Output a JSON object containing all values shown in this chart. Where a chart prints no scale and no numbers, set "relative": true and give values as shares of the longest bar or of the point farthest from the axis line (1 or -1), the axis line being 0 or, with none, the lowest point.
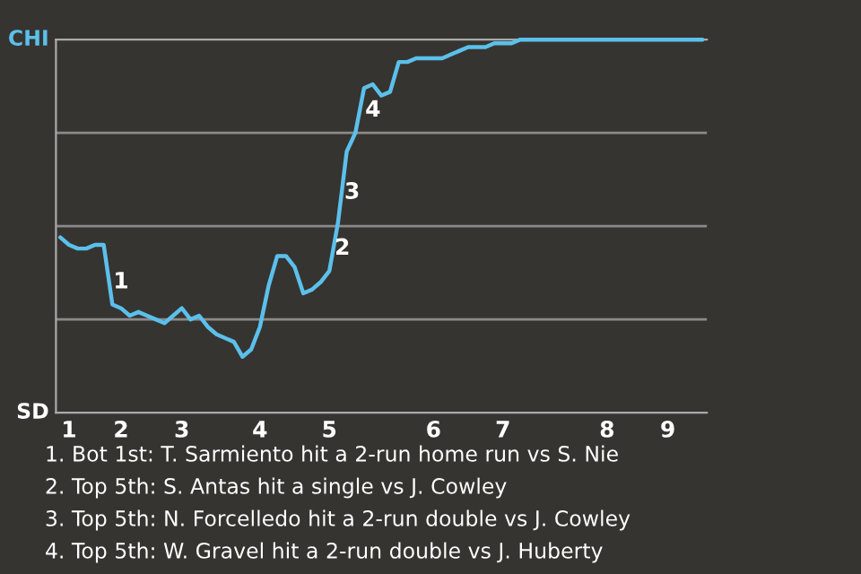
{
  "chart_data": {
    "type": "line",
    "relative": true,
    "categories": [
      null,
      "1",
      null,
      null,
      null,
      null,
      null,
      "2",
      null,
      null,
      null,
      null,
      null,
      null,
      "3",
      null,
      null,
      null,
      null,
      null,
      null,
      null,
      null,
      "4",
      null,
      null,
      null,
      null,
      null,
      null,
      null,
      "5",
      null,
      null,
      null,
      null,
      null,
      null,
      null,
      null,
      null,
      null,
      null,
      "6",
      null,
      null,
      null,
      null,
      null,
      null,
      null,
      "7",
      null,
      null,
      null,
      null,
      null,
      null,
      null,
      null,
      null,
      null,
      null,
      "8",
      null,
      null,
      null,
      null,
      null,
      null,
      "9",
      null,
      null,
      null,
      null
    ],
    "series": [
      {
        "color": "#5bc0eb",
        "values": [
          0.47,
          0.45,
          0.44,
          0.44,
          0.45,
          0.45,
          0.29,
          0.28,
          0.26,
          0.27,
          0.26,
          0.25,
          0.24,
          0.26,
          0.28,
          0.25,
          0.26,
          0.23,
          0.21,
          0.2,
          0.19,
          0.15,
          0.17,
          0.23,
          0.34,
          0.42,
          0.42,
          0.39,
          0.32,
          0.33,
          0.35,
          0.38,
          0.51,
          0.7,
          0.75,
          0.87,
          0.88,
          0.85,
          0.86,
          0.94,
          0.94,
          0.95,
          0.95,
          0.95,
          0.95,
          0.96,
          0.97,
          0.98,
          0.98,
          0.98,
          0.99,
          0.99,
          0.99,
          1,
          1,
          1,
          1,
          1,
          1,
          1,
          1,
          1,
          1,
          1,
          1,
          1,
          1,
          1,
          1,
          1,
          1,
          1,
          1,
          1,
          1
        ]
      }
    ],
    "grid": "y",
    "annotations": [
      "CHI",
      "SD",
      "1",
      "2",
      "3",
      "4",
      "1. Bot 1st: T. Sarmiento hit a 2-run home run vs S. Nie",
      "2. Top 5th: S. Antas hit a single vs J. Cowley",
      "3. Top 5th: N. Forcelledo hit a 2-run double vs J. Cowley",
      "4. Top 5th: W. Gravel hit a 2-run double vs J. Huberty"
    ]
  }
}
